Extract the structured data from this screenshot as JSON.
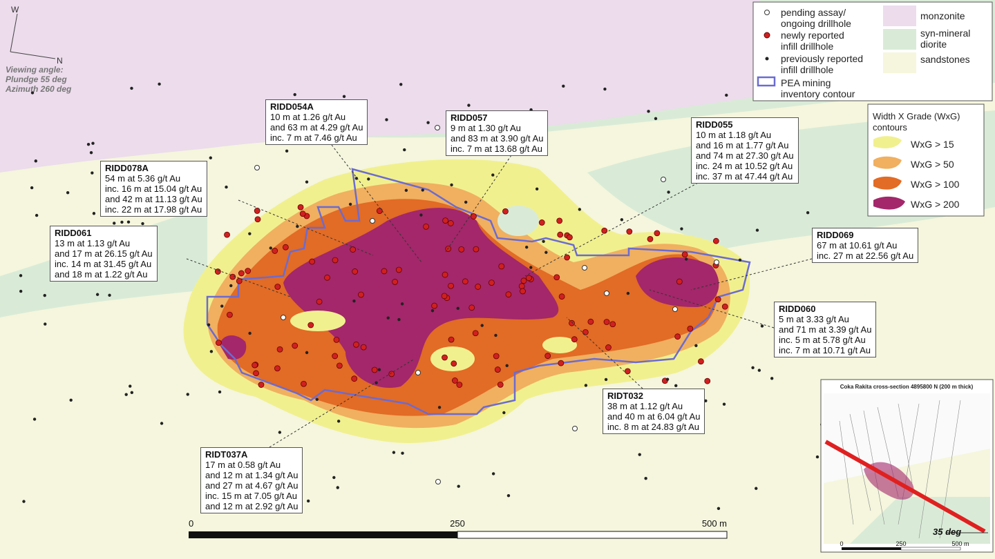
{
  "orientation": {
    "w": "W",
    "n": "N"
  },
  "viewing_angle": [
    "Viewing angle:",
    "Plundge 55 deg",
    "Azimuth 260 deg"
  ],
  "legend": {
    "symbols": [
      {
        "lines": [
          "pending assay/",
          "ongoing drillhole"
        ]
      },
      {
        "lines": [
          "newly reported",
          "infill drillhole"
        ]
      },
      {
        "lines": [
          "previously reported",
          "infill drillhole"
        ]
      },
      {
        "lines": [
          "PEA mining",
          "inventory contour"
        ]
      }
    ],
    "units": [
      {
        "lines": [
          "monzonite"
        ]
      },
      {
        "lines": [
          "syn-mineral",
          "diorite"
        ]
      },
      {
        "lines": [
          "sandstones"
        ]
      }
    ]
  },
  "wxg_legend": {
    "title": [
      "Width X Grade (WxG)",
      "contours"
    ],
    "items": [
      "WxG > 15",
      "WxG > 50",
      "WxG > 100",
      "WxG > 200"
    ]
  },
  "callouts": [
    {
      "id": "RIDD054A",
      "lines": [
        "10 m at 1.26 g/t Au",
        "and 63 m at 4.29 g/t Au",
        "inc. 7 m at 7.46 g/t Au"
      ]
    },
    {
      "id": "RIDD057",
      "lines": [
        "9 m at 1.30 g/t Au",
        "and 83 m at 3.90 g/t Au",
        "inc. 7 m at 13.68 g/t Au"
      ]
    },
    {
      "id": "RIDD055",
      "lines": [
        "10 m at 1.18 g/t Au",
        "and 16 m at 1.77 g/t Au",
        "and 74 m at 27.30 g/t Au",
        "inc. 24 m at 10.52 g/t Au",
        "inc. 37 m at 47.44 g/t Au"
      ]
    },
    {
      "id": "RIDD078A",
      "lines": [
        "54 m at 5.36 g/t Au",
        "inc. 16 m at 15.04 g/t Au",
        "and 42 m at 11.13 g/t Au",
        "inc. 22 m at 17.98 g/t Au"
      ]
    },
    {
      "id": "RIDD061",
      "lines": [
        "13 m at 1.13 g/t Au",
        "and 17 m at 26.15 g/t Au",
        "inc. 14 m at 31.45 g/t Au",
        "and 18 m at 1.22 g/t Au"
      ]
    },
    {
      "id": "RIDD069",
      "lines": [
        "67 m at 10.61 g/t Au",
        "inc. 27 m at 22.56 g/t Au"
      ]
    },
    {
      "id": "RIDD060",
      "lines": [
        "5 m at 3.33 g/t Au",
        "and 71 m at 3.39 g/t Au",
        "inc. 5 m at 5.78 g/t Au",
        "inc. 7 m at 10.71 g/t Au"
      ]
    },
    {
      "id": "RIDT032",
      "lines": [
        "38 m at 1.12 g/t Au",
        "and 40 m at 6.04 g/t Au",
        "inc. 8 m at 24.83 g/t Au"
      ]
    },
    {
      "id": "RIDT037A",
      "lines": [
        "17 m at 0.58 g/t Au",
        "and 12 m at 1.34 g/t Au",
        "and 27 m at 4.67 g/t Au",
        "inc. 15 m at 7.05 g/t Au",
        "and 12 m at 2.92 g/t Au"
      ]
    }
  ],
  "scale_bar": {
    "labels": [
      "0",
      "250",
      "500 m"
    ]
  },
  "inset": {
    "title": "Coka Rakita cross-section 4895800 N (200 m thick)",
    "angle": "35 deg",
    "scale_labels": [
      "0",
      "250",
      "500 m"
    ]
  }
}
